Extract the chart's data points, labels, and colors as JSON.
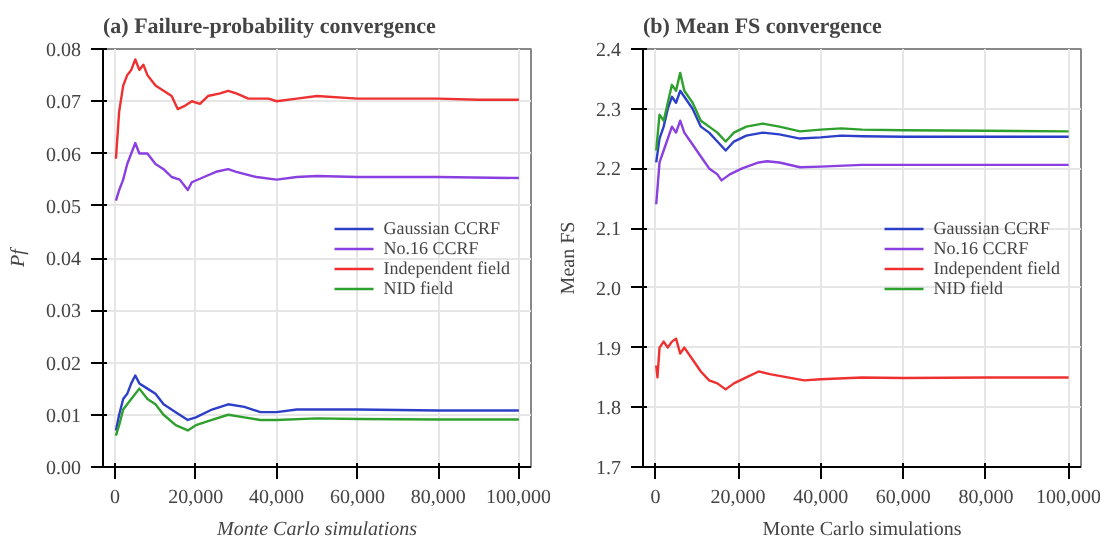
{
  "chart_data": [
    {
      "type": "line",
      "title": "(a) Failure-probability convergence",
      "xlabel": "Monte Carlo simulations",
      "ylabel": "Pf",
      "xlim": [
        -3000,
        103000
      ],
      "ylim": [
        0,
        0.08
      ],
      "xticks": [
        0,
        {
          "value": 20000,
          "label": "20,000"
        },
        {
          "value": 40000,
          "label": "40,000"
        },
        {
          "value": 60000,
          "label": "60,000"
        },
        {
          "value": 80000,
          "label": "80,000"
        },
        {
          "value": 100000,
          "label": "100,000"
        }
      ],
      "yticks": [
        {
          "value": 0,
          "label": "0.00"
        },
        0.01,
        0.02,
        0.03,
        0.04,
        0.05,
        0.06,
        0.07,
        0.08
      ],
      "grid": true,
      "legend": "right",
      "series": [
        {
          "name": "Gaussian CCRF",
          "color": "#2c3fc9",
          "x": [
            200,
            1000,
            2000,
            3000,
            4000,
            5000,
            6000,
            8000,
            10000,
            12000,
            15000,
            18000,
            20000,
            24000,
            28000,
            32000,
            36000,
            40000,
            45000,
            50000,
            60000,
            80000,
            100000
          ],
          "values": [
            0.007,
            0.01,
            0.013,
            0.014,
            0.016,
            0.0175,
            0.016,
            0.015,
            0.014,
            0.012,
            0.0105,
            0.009,
            0.0095,
            0.011,
            0.012,
            0.0115,
            0.0105,
            0.0105,
            0.011,
            0.011,
            0.011,
            0.0108,
            0.0108
          ]
        },
        {
          "name": "No.16 CCRF",
          "color": "#8a3fe0",
          "x": [
            200,
            1000,
            2000,
            3000,
            4000,
            5000,
            6000,
            8000,
            10000,
            12000,
            14000,
            16000,
            18000,
            19000,
            22000,
            25000,
            28000,
            30000,
            35000,
            40000,
            45000,
            50000,
            60000,
            80000,
            100000
          ],
          "values": [
            0.051,
            0.053,
            0.055,
            0.058,
            0.06,
            0.062,
            0.06,
            0.06,
            0.058,
            0.057,
            0.0555,
            0.055,
            0.053,
            0.0545,
            0.0555,
            0.0565,
            0.057,
            0.0565,
            0.0555,
            0.055,
            0.0555,
            0.0557,
            0.0555,
            0.0555,
            0.0553
          ]
        },
        {
          "name": "Independent field",
          "color": "#ee3030",
          "x": [
            200,
            1000,
            2000,
            3000,
            4000,
            5000,
            6000,
            7000,
            8000,
            10000,
            12000,
            14000,
            15500,
            17000,
            19000,
            21000,
            23000,
            26000,
            28000,
            30000,
            33000,
            38000,
            40000,
            45000,
            50000,
            60000,
            70000,
            80000,
            90000,
            100000
          ],
          "values": [
            0.059,
            0.068,
            0.073,
            0.075,
            0.076,
            0.078,
            0.076,
            0.077,
            0.075,
            0.073,
            0.072,
            0.071,
            0.0685,
            0.069,
            0.07,
            0.0695,
            0.071,
            0.0715,
            0.072,
            0.0715,
            0.0705,
            0.0705,
            0.07,
            0.0705,
            0.071,
            0.0705,
            0.0705,
            0.0705,
            0.0703,
            0.0703
          ]
        },
        {
          "name": "NID field",
          "color": "#2ea02e",
          "x": [
            200,
            1000,
            2000,
            4000,
            6000,
            8000,
            10000,
            12000,
            15000,
            18000,
            20000,
            24000,
            28000,
            32000,
            36000,
            40000,
            50000,
            60000,
            80000,
            100000
          ],
          "values": [
            0.006,
            0.008,
            0.011,
            0.013,
            0.015,
            0.013,
            0.012,
            0.01,
            0.008,
            0.007,
            0.008,
            0.009,
            0.01,
            0.0095,
            0.009,
            0.009,
            0.0093,
            0.0092,
            0.0091,
            0.0091
          ]
        }
      ]
    },
    {
      "type": "line",
      "title": "(b) Mean FS convergence",
      "xlabel": "Monte Carlo simulations",
      "ylabel": "Mean FS",
      "xlim": [
        -3000,
        103000
      ],
      "ylim": [
        1.7,
        2.4
      ],
      "xticks": [
        0,
        {
          "value": 20000,
          "label": "20,000"
        },
        {
          "value": 40000,
          "label": "40,000"
        },
        {
          "value": 60000,
          "label": "60,000"
        },
        {
          "value": 80000,
          "label": "80,000"
        },
        {
          "value": 100000,
          "label": "100,000"
        }
      ],
      "yticks": [
        1.7,
        1.8,
        1.9,
        {
          "value": 2.0,
          "label": "2.0"
        },
        2.1,
        2.2,
        2.3,
        2.4
      ],
      "grid": true,
      "legend": "right",
      "series": [
        {
          "name": "Gaussian CCRF",
          "color": "#2c3fc9",
          "x": [
            200,
            1000,
            2000,
            3000,
            4000,
            5000,
            6000,
            7000,
            9000,
            11000,
            13000,
            15000,
            17000,
            19000,
            22000,
            26000,
            30000,
            35000,
            40000,
            45000,
            50000,
            60000,
            80000,
            100000
          ],
          "values": [
            2.21,
            2.25,
            2.27,
            2.3,
            2.32,
            2.31,
            2.33,
            2.32,
            2.3,
            2.27,
            2.26,
            2.245,
            2.23,
            2.245,
            2.255,
            2.26,
            2.257,
            2.25,
            2.252,
            2.255,
            2.254,
            2.253,
            2.253,
            2.253
          ]
        },
        {
          "name": "No.16 CCRF",
          "color": "#8a3fe0",
          "x": [
            200,
            1000,
            2000,
            3000,
            4000,
            5000,
            6000,
            7000,
            9000,
            11000,
            13000,
            15000,
            16000,
            18000,
            21000,
            25000,
            27000,
            30000,
            35000,
            40000,
            50000,
            60000,
            80000,
            100000
          ],
          "values": [
            2.14,
            2.21,
            2.23,
            2.25,
            2.27,
            2.26,
            2.28,
            2.26,
            2.24,
            2.22,
            2.2,
            2.19,
            2.18,
            2.19,
            2.2,
            2.21,
            2.212,
            2.21,
            2.202,
            2.203,
            2.206,
            2.206,
            2.206,
            2.206
          ]
        },
        {
          "name": "Independent field",
          "color": "#ee3030",
          "x": [
            200,
            500,
            1000,
            2000,
            3000,
            4000,
            5000,
            6000,
            7000,
            9000,
            11000,
            13000,
            15000,
            17000,
            19000,
            22000,
            25000,
            28000,
            32000,
            36000,
            40000,
            50000,
            60000,
            80000,
            100000
          ],
          "values": [
            1.87,
            1.85,
            1.9,
            1.91,
            1.9,
            1.91,
            1.915,
            1.89,
            1.9,
            1.88,
            1.86,
            1.845,
            1.84,
            1.83,
            1.84,
            1.85,
            1.86,
            1.855,
            1.85,
            1.845,
            1.847,
            1.85,
            1.849,
            1.85,
            1.85
          ]
        },
        {
          "name": "NID field",
          "color": "#2ea02e",
          "x": [
            200,
            1000,
            2000,
            3000,
            4000,
            5000,
            6000,
            7000,
            9000,
            11000,
            13000,
            15000,
            17000,
            19000,
            22000,
            26000,
            30000,
            35000,
            40000,
            45000,
            50000,
            60000,
            80000,
            100000
          ],
          "values": [
            2.23,
            2.29,
            2.28,
            2.31,
            2.34,
            2.33,
            2.36,
            2.33,
            2.31,
            2.28,
            2.27,
            2.26,
            2.245,
            2.26,
            2.27,
            2.275,
            2.27,
            2.262,
            2.265,
            2.267,
            2.265,
            2.264,
            2.263,
            2.262
          ]
        }
      ]
    }
  ]
}
